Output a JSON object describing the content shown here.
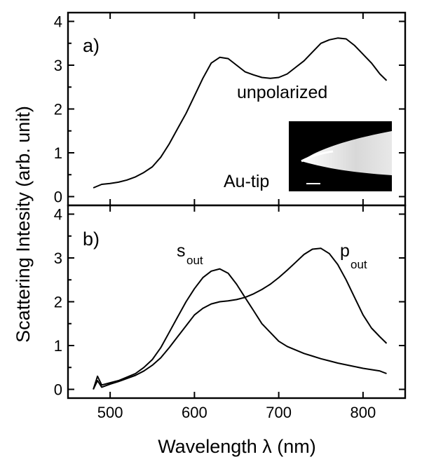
{
  "chart_data": [
    {
      "panel": "a)",
      "type": "line",
      "xlabel": "Wavelength λ (nm)",
      "ylabel": "Scattering Intesity (arb. unit)",
      "xlim": [
        450,
        850
      ],
      "ylim": [
        -0.2,
        4.2
      ],
      "x_ticks": [
        500,
        600,
        700,
        800
      ],
      "y_ticks": [
        0,
        1,
        2,
        3,
        4
      ],
      "series": [
        {
          "name": "unpolarized",
          "x": [
            480,
            490,
            500,
            510,
            520,
            530,
            540,
            550,
            560,
            570,
            580,
            590,
            600,
            610,
            620,
            630,
            640,
            650,
            660,
            670,
            680,
            690,
            700,
            710,
            720,
            730,
            740,
            750,
            760,
            770,
            780,
            790,
            800,
            810,
            820,
            828
          ],
          "y": [
            0.2,
            0.28,
            0.3,
            0.33,
            0.38,
            0.45,
            0.55,
            0.68,
            0.9,
            1.2,
            1.55,
            1.9,
            2.3,
            2.7,
            3.05,
            3.18,
            3.15,
            3.0,
            2.85,
            2.78,
            2.72,
            2.7,
            2.72,
            2.8,
            2.95,
            3.1,
            3.3,
            3.5,
            3.58,
            3.62,
            3.6,
            3.45,
            3.25,
            3.05,
            2.8,
            2.65
          ]
        }
      ],
      "annotations": [
        "unpolarized",
        "Au-tip"
      ]
    },
    {
      "panel": "b)",
      "type": "line",
      "xlabel": "Wavelength λ (nm)",
      "ylabel": "Scattering Intesity (arb. unit)",
      "xlim": [
        450,
        850
      ],
      "ylim": [
        -0.2,
        4.2
      ],
      "x_ticks": [
        500,
        600,
        700,
        800
      ],
      "y_ticks": [
        0,
        1,
        2,
        3,
        4
      ],
      "series": [
        {
          "name": "s_out",
          "x": [
            480,
            485,
            490,
            500,
            510,
            520,
            530,
            540,
            550,
            560,
            570,
            580,
            590,
            600,
            610,
            620,
            630,
            640,
            650,
            660,
            670,
            680,
            690,
            700,
            710,
            720,
            730,
            740,
            750,
            760,
            770,
            780,
            790,
            800,
            810,
            820,
            828
          ],
          "y": [
            0.0,
            0.3,
            0.1,
            0.15,
            0.2,
            0.28,
            0.36,
            0.5,
            0.68,
            0.95,
            1.3,
            1.65,
            2.0,
            2.3,
            2.55,
            2.7,
            2.75,
            2.65,
            2.4,
            2.1,
            1.8,
            1.5,
            1.3,
            1.1,
            0.98,
            0.9,
            0.82,
            0.76,
            0.7,
            0.65,
            0.6,
            0.56,
            0.52,
            0.48,
            0.45,
            0.42,
            0.36
          ]
        },
        {
          "name": "p_out",
          "x": [
            480,
            485,
            490,
            500,
            510,
            520,
            530,
            540,
            550,
            560,
            570,
            580,
            590,
            600,
            610,
            620,
            630,
            640,
            650,
            660,
            670,
            680,
            690,
            700,
            710,
            720,
            730,
            740,
            750,
            760,
            770,
            780,
            790,
            800,
            810,
            820,
            828
          ],
          "y": [
            0.0,
            0.2,
            0.05,
            0.12,
            0.18,
            0.25,
            0.32,
            0.42,
            0.55,
            0.72,
            0.95,
            1.2,
            1.45,
            1.7,
            1.85,
            1.95,
            2.0,
            2.02,
            2.05,
            2.1,
            2.18,
            2.28,
            2.4,
            2.55,
            2.72,
            2.9,
            3.08,
            3.2,
            3.22,
            3.1,
            2.85,
            2.5,
            2.1,
            1.7,
            1.4,
            1.2,
            1.05
          ]
        }
      ],
      "annotations": [
        {
          "main": "s",
          "sub": "out"
        },
        {
          "main": "p",
          "sub": "out"
        }
      ]
    }
  ],
  "labels": {
    "panel_a": "a)",
    "panel_b": "b)",
    "unpolarized": "unpolarized",
    "au_tip": "Au-tip",
    "s_main": "s",
    "s_sub": "out",
    "p_main": "p",
    "p_sub": "out",
    "xlabel": "Wavelength λ (nm)",
    "ylabel": "Scattering Intesity (arb. unit)"
  }
}
